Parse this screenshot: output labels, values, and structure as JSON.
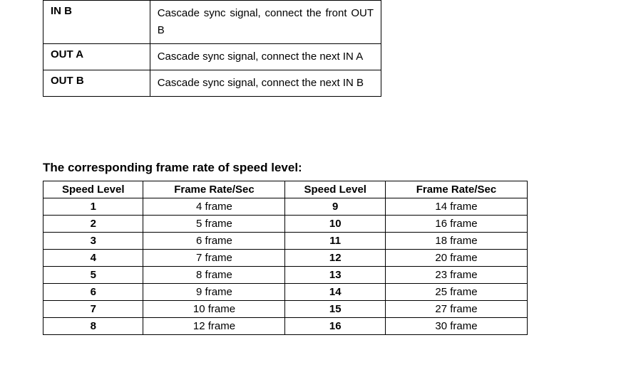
{
  "signalTable": {
    "rows": [
      {
        "label": "IN B",
        "desc": "Cascade sync signal, connect the front OUT B"
      },
      {
        "label": "OUT A",
        "desc": "Cascade sync signal, connect the next IN A"
      },
      {
        "label": "OUT B",
        "desc": "Cascade sync signal, connect the next IN B"
      }
    ]
  },
  "section": {
    "title": "The corresponding frame rate of speed level:"
  },
  "frameRateTable": {
    "headers": {
      "speedLevel": "Speed Level",
      "frameRate": "Frame Rate/Sec"
    },
    "rows": [
      {
        "sl1": "1",
        "fr1": "4 frame",
        "sl2": "9",
        "fr2": "14 frame"
      },
      {
        "sl1": "2",
        "fr1": "5 frame",
        "sl2": "10",
        "fr2": "16 frame"
      },
      {
        "sl1": "3",
        "fr1": "6 frame",
        "sl2": "11",
        "fr2": "18 frame"
      },
      {
        "sl1": "4",
        "fr1": "7 frame",
        "sl2": "12",
        "fr2": "20 frame"
      },
      {
        "sl1": "5",
        "fr1": "8 frame",
        "sl2": "13",
        "fr2": "23 frame"
      },
      {
        "sl1": "6",
        "fr1": "9 frame",
        "sl2": "14",
        "fr2": "25 frame"
      },
      {
        "sl1": "7",
        "fr1": "10 frame",
        "sl2": "15",
        "fr2": "27 frame"
      },
      {
        "sl1": "8",
        "fr1": "12 frame",
        "sl2": "16",
        "fr2": "30 frame"
      }
    ]
  }
}
